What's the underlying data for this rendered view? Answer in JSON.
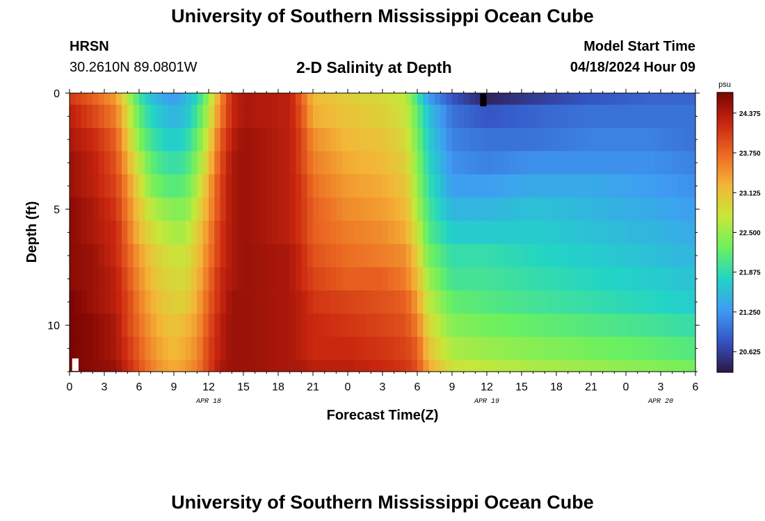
{
  "header": {
    "title": "University of Southern Mississippi Ocean Cube",
    "station": "HRSN",
    "coordinates": "30.2610N  89.0801W",
    "subtitle": "2-D Salinity at Depth",
    "model_start_label": "Model Start Time",
    "model_start_value": "04/18/2024 Hour 09"
  },
  "footer": {
    "title": "University of Southern Mississippi Ocean Cube"
  },
  "chart_data": {
    "type": "heatmap",
    "title": "2-D Salinity at Depth",
    "xlabel": "Forecast Time(Z)",
    "ylabel": "Depth (ft)",
    "x_range_hours": [
      0,
      54
    ],
    "y_range_ft": [
      0,
      12
    ],
    "y_inverted": true,
    "x_ticks": [
      {
        "h": 0,
        "label": "0"
      },
      {
        "h": 3,
        "label": "3"
      },
      {
        "h": 6,
        "label": "6"
      },
      {
        "h": 9,
        "label": "9"
      },
      {
        "h": 12,
        "label": "12"
      },
      {
        "h": 15,
        "label": "15"
      },
      {
        "h": 18,
        "label": "18"
      },
      {
        "h": 21,
        "label": "21"
      },
      {
        "h": 24,
        "label": "0"
      },
      {
        "h": 27,
        "label": "3"
      },
      {
        "h": 30,
        "label": "6"
      },
      {
        "h": 33,
        "label": "9"
      },
      {
        "h": 36,
        "label": "12"
      },
      {
        "h": 39,
        "label": "15"
      },
      {
        "h": 42,
        "label": "18"
      },
      {
        "h": 45,
        "label": "21"
      },
      {
        "h": 48,
        "label": "0"
      },
      {
        "h": 51,
        "label": "3"
      },
      {
        "h": 54,
        "label": "6"
      }
    ],
    "y_ticks": [
      {
        "ft": 0,
        "label": "0"
      },
      {
        "ft": 5,
        "label": "5"
      },
      {
        "ft": 10,
        "label": "10"
      }
    ],
    "date_labels": [
      {
        "h": 12,
        "label": "APR 18"
      },
      {
        "h": 36,
        "label": "APR 19"
      },
      {
        "h": 51,
        "label": "APR 20"
      }
    ],
    "colorbar": {
      "unit": "psu",
      "min": 20.3,
      "max": 24.7,
      "ticks": [
        "24.375",
        "23.750",
        "23.125",
        "22.500",
        "21.875",
        "21.250",
        "20.625"
      ],
      "tick_values": [
        24.375,
        23.75,
        23.125,
        22.5,
        21.875,
        21.25,
        20.625
      ],
      "colormap": [
        "#2e1743",
        "#3554c4",
        "#3f9cf3",
        "#22d4c6",
        "#6bf060",
        "#c6e83a",
        "#f4b637",
        "#ec6a23",
        "#c9260f",
        "#7a0403"
      ]
    },
    "depth_levels_ft": [
      0,
      1,
      2,
      3,
      4,
      5,
      6,
      7,
      8,
      9,
      10,
      11,
      12
    ],
    "time_keypoints_hours": [
      0,
      2,
      4,
      5,
      6,
      7,
      8,
      9,
      10,
      11,
      12,
      13,
      14,
      15,
      19,
      20,
      21,
      24,
      27,
      29,
      30,
      31,
      33,
      36,
      40,
      45,
      50,
      54
    ],
    "salinity_psu": [
      [
        24.1,
        23.8,
        23.4,
        22.7,
        22.0,
        21.6,
        21.4,
        21.3,
        21.5,
        21.8,
        22.5,
        23.5,
        24.2,
        24.4,
        24.3,
        23.8,
        23.2,
        23.0,
        22.9,
        22.7,
        22.0,
        21.3,
        20.8,
        20.4,
        20.6,
        20.8,
        20.9,
        20.9
      ],
      [
        24.3,
        24.0,
        23.6,
        22.9,
        22.2,
        21.8,
        21.6,
        21.5,
        21.6,
        22.0,
        22.7,
        23.6,
        24.2,
        24.4,
        24.3,
        23.9,
        23.3,
        23.1,
        23.0,
        22.8,
        22.2,
        21.6,
        21.0,
        20.8,
        20.9,
        21.0,
        21.0,
        21.0
      ],
      [
        24.4,
        24.2,
        23.8,
        23.1,
        22.4,
        22.0,
        21.8,
        21.7,
        21.8,
        22.2,
        22.9,
        23.8,
        24.3,
        24.5,
        24.3,
        24.0,
        23.5,
        23.2,
        23.1,
        22.9,
        22.3,
        21.7,
        21.1,
        21.0,
        21.0,
        21.1,
        21.1,
        21.0
      ],
      [
        24.5,
        24.3,
        23.9,
        23.3,
        22.7,
        22.2,
        22.0,
        21.9,
        22.0,
        22.4,
        23.1,
        23.9,
        24.4,
        24.5,
        24.3,
        24.0,
        23.6,
        23.3,
        23.2,
        23.0,
        22.4,
        21.8,
        21.2,
        21.1,
        21.2,
        21.2,
        21.2,
        21.1
      ],
      [
        24.5,
        24.3,
        24.0,
        23.5,
        22.9,
        22.4,
        22.2,
        22.1,
        22.2,
        22.6,
        23.3,
        24.0,
        24.4,
        24.5,
        24.3,
        24.1,
        23.7,
        23.4,
        23.3,
        23.1,
        22.5,
        21.9,
        21.3,
        21.3,
        21.4,
        21.4,
        21.3,
        21.2
      ],
      [
        24.6,
        24.4,
        24.1,
        23.6,
        23.1,
        22.7,
        22.5,
        22.4,
        22.4,
        22.8,
        23.4,
        24.0,
        24.4,
        24.5,
        24.3,
        24.1,
        23.8,
        23.5,
        23.4,
        23.2,
        22.6,
        22.0,
        21.5,
        21.5,
        21.6,
        21.5,
        21.4,
        21.3
      ],
      [
        24.6,
        24.4,
        24.2,
        23.7,
        23.2,
        22.9,
        22.7,
        22.6,
        22.6,
        23.0,
        23.5,
        24.1,
        24.4,
        24.5,
        24.3,
        24.1,
        23.8,
        23.6,
        23.5,
        23.3,
        22.8,
        22.1,
        21.7,
        21.7,
        21.7,
        21.6,
        21.5,
        21.4
      ],
      [
        24.6,
        24.5,
        24.2,
        23.8,
        23.4,
        23.1,
        22.9,
        22.8,
        22.8,
        23.1,
        23.6,
        24.1,
        24.4,
        24.5,
        24.4,
        24.2,
        23.9,
        23.7,
        23.6,
        23.5,
        23.0,
        22.3,
        21.9,
        21.9,
        21.8,
        21.7,
        21.6,
        21.5
      ],
      [
        24.6,
        24.5,
        24.3,
        23.9,
        23.5,
        23.2,
        23.0,
        22.9,
        22.9,
        23.2,
        23.7,
        24.2,
        24.4,
        24.5,
        24.4,
        24.2,
        24.0,
        23.8,
        23.8,
        23.6,
        23.2,
        22.5,
        22.0,
        22.0,
        21.9,
        21.8,
        21.7,
        21.6
      ],
      [
        24.7,
        24.5,
        24.3,
        24.0,
        23.6,
        23.3,
        23.1,
        23.0,
        23.0,
        23.3,
        23.8,
        24.2,
        24.5,
        24.5,
        24.4,
        24.3,
        24.1,
        24.0,
        23.9,
        23.8,
        23.4,
        22.7,
        22.2,
        22.1,
        22.0,
        21.9,
        21.8,
        21.7
      ],
      [
        24.7,
        24.6,
        24.4,
        24.0,
        23.7,
        23.4,
        23.2,
        23.1,
        23.2,
        23.4,
        23.9,
        24.3,
        24.5,
        24.5,
        24.4,
        24.3,
        24.2,
        24.1,
        24.0,
        23.9,
        23.6,
        22.9,
        22.4,
        22.3,
        22.2,
        22.1,
        22.0,
        21.9
      ],
      [
        24.7,
        24.6,
        24.4,
        24.1,
        23.8,
        23.5,
        23.3,
        23.2,
        23.3,
        23.5,
        24.0,
        24.3,
        24.5,
        24.5,
        24.4,
        24.3,
        24.2,
        24.2,
        24.1,
        24.0,
        23.8,
        23.1,
        22.6,
        22.5,
        22.4,
        22.3,
        22.2,
        22.1
      ],
      [
        24.7,
        24.6,
        24.5,
        24.2,
        23.9,
        23.6,
        23.4,
        23.3,
        23.4,
        23.6,
        24.0,
        24.4,
        24.5,
        24.5,
        24.4,
        24.4,
        24.3,
        24.3,
        24.2,
        24.1,
        23.9,
        23.3,
        22.8,
        22.7,
        22.6,
        22.5,
        22.4,
        22.3
      ]
    ],
    "special_cells": [
      {
        "h": 35.7,
        "ft": 0.3,
        "color": "#000000"
      },
      {
        "h": 0.5,
        "ft": 11.7,
        "color": "#ffffff"
      }
    ]
  }
}
